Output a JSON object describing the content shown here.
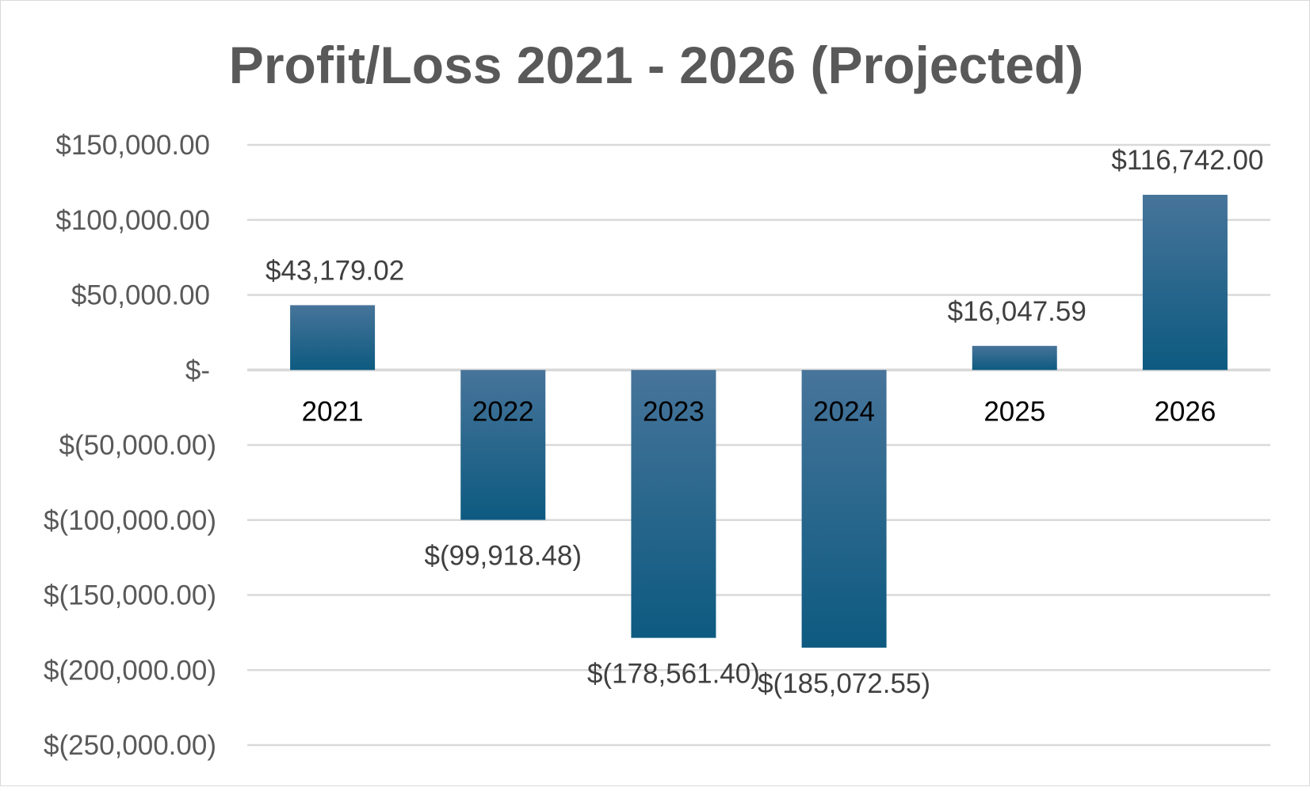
{
  "chart_data": {
    "type": "bar",
    "title": "Profit/Loss 2021 - 2026 (Projected)",
    "xlabel": "",
    "ylabel": "",
    "ylim": [
      -250000,
      150000
    ],
    "ytick_step": 50000,
    "yticks": [
      150000,
      100000,
      50000,
      0,
      -50000,
      -100000,
      -150000,
      -200000,
      -250000
    ],
    "ytick_labels": [
      "$150,000.00",
      "$100,000.00",
      "$50,000.00",
      "$-",
      "$(50,000.00)",
      "$(100,000.00)",
      "$(150,000.00)",
      "$(200,000.00)",
      "$(250,000.00)"
    ],
    "categories": [
      "2021",
      "2022",
      "2023",
      "2024",
      "2025",
      "2026"
    ],
    "values": [
      43179.02,
      -99918.48,
      -178561.4,
      -185072.55,
      16047.59,
      116742.0
    ],
    "data_labels": [
      "$43,179.02",
      "$(99,918.48)",
      "$(178,561.40)",
      "$(185,072.55)",
      "$16,047.59",
      "$116,742.00"
    ],
    "grid": true,
    "legend": "none",
    "colors": {
      "bar_top": "#47749a",
      "bar_bottom": "#0d5a80",
      "grid": "#d9d9d9",
      "title": "#595959",
      "axis_text": "#595959",
      "category_text": "#000000",
      "data_label_text": "#404040"
    }
  }
}
